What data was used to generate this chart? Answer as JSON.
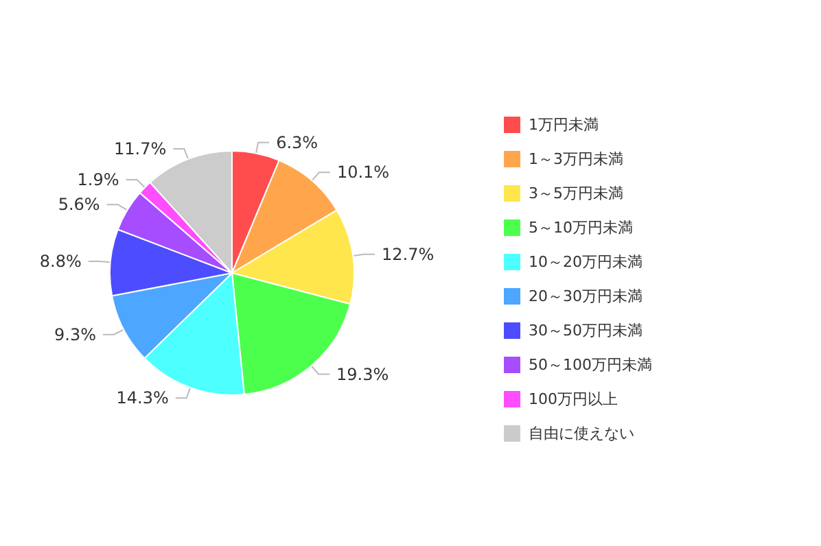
{
  "chart_data": {
    "type": "pie",
    "categories": [
      "1万円未満",
      "1～3万円未満",
      "3～5万円未満",
      "5～10万円未満",
      "10～20万円未満",
      "20～30万円未満",
      "30～50万円未満",
      "50～100万円未満",
      "100万円以上",
      "自由に使えない"
    ],
    "values": [
      6.3,
      10.1,
      12.7,
      19.3,
      14.3,
      9.3,
      8.8,
      5.6,
      1.9,
      11.7
    ],
    "value_labels": [
      "6.3%",
      "10.1%",
      "12.7%",
      "19.3%",
      "14.3%",
      "9.3%",
      "8.8%",
      "5.6%",
      "1.9%",
      "11.7%"
    ],
    "colors": [
      "#ff4d4d",
      "#ffa64d",
      "#ffe64d",
      "#4dff4d",
      "#4dffff",
      "#4da6ff",
      "#4d4dff",
      "#a64dff",
      "#ff4dff",
      "#cccccc"
    ],
    "legend": "right"
  }
}
